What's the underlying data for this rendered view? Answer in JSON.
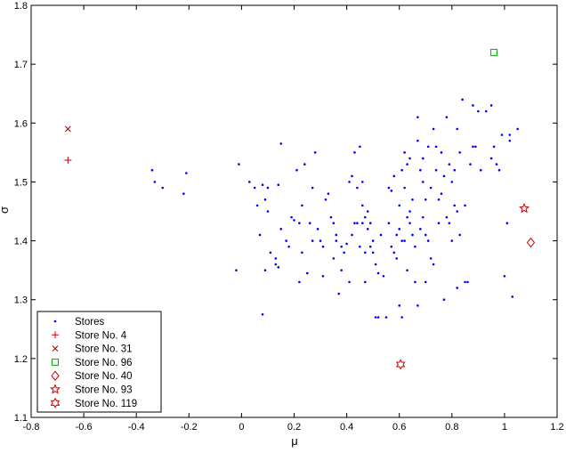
{
  "chart_data": {
    "type": "scatter",
    "xlabel": "μ",
    "ylabel": "σ",
    "xlim": [
      -0.8,
      1.2
    ],
    "ylim": [
      1.1,
      1.8
    ],
    "xticks": [
      "-0.8",
      "-0.6",
      "-0.4",
      "-0.2",
      "0",
      "0.2",
      "0.4",
      "0.6",
      "0.8",
      "1",
      "1.2"
    ],
    "yticks": [
      "1.1",
      "1.2",
      "1.3",
      "1.4",
      "1.5",
      "1.6",
      "1.7",
      "1.8"
    ],
    "grid": false,
    "legend_position": "bottom-left",
    "series": [
      {
        "name": "Stores",
        "marker": "dot",
        "color": "#0000ff",
        "points": [
          [
            -0.34,
            1.52
          ],
          [
            -0.33,
            1.5
          ],
          [
            -0.3,
            1.49
          ],
          [
            -0.22,
            1.48
          ],
          [
            -0.21,
            1.515
          ],
          [
            -0.02,
            1.35
          ],
          [
            -0.01,
            1.53
          ],
          [
            0.03,
            1.5
          ],
          [
            0.05,
            1.49
          ],
          [
            0.06,
            1.46
          ],
          [
            0.07,
            1.41
          ],
          [
            0.08,
            1.495
          ],
          [
            0.08,
            1.275
          ],
          [
            0.09,
            1.47
          ],
          [
            0.1,
            1.49
          ],
          [
            0.1,
            1.45
          ],
          [
            0.09,
            1.35
          ],
          [
            0.11,
            1.38
          ],
          [
            0.13,
            1.36
          ],
          [
            0.13,
            1.37
          ],
          [
            0.14,
            1.355
          ],
          [
            0.14,
            1.495
          ],
          [
            0.15,
            1.565
          ],
          [
            0.15,
            1.42
          ],
          [
            0.17,
            1.4
          ],
          [
            0.18,
            1.39
          ],
          [
            0.19,
            1.44
          ],
          [
            0.2,
            1.435
          ],
          [
            0.21,
            1.52
          ],
          [
            0.22,
            1.33
          ],
          [
            0.22,
            1.43
          ],
          [
            0.23,
            1.46
          ],
          [
            0.23,
            1.38
          ],
          [
            0.24,
            1.53
          ],
          [
            0.25,
            1.345
          ],
          [
            0.26,
            1.43
          ],
          [
            0.27,
            1.4
          ],
          [
            0.27,
            1.49
          ],
          [
            0.28,
            1.55
          ],
          [
            0.29,
            1.42
          ],
          [
            0.3,
            1.4
          ],
          [
            0.31,
            1.39
          ],
          [
            0.31,
            1.34
          ],
          [
            0.32,
            1.47
          ],
          [
            0.33,
            1.48
          ],
          [
            0.34,
            1.44
          ],
          [
            0.35,
            1.43
          ],
          [
            0.35,
            1.37
          ],
          [
            0.36,
            1.4
          ],
          [
            0.36,
            1.41
          ],
          [
            0.37,
            1.31
          ],
          [
            0.38,
            1.39
          ],
          [
            0.38,
            1.35
          ],
          [
            0.39,
            1.38
          ],
          [
            0.4,
            1.395
          ],
          [
            0.41,
            1.5
          ],
          [
            0.41,
            1.33
          ],
          [
            0.42,
            1.41
          ],
          [
            0.42,
            1.51
          ],
          [
            0.43,
            1.43
          ],
          [
            0.43,
            1.55
          ],
          [
            0.44,
            1.43
          ],
          [
            0.44,
            1.49
          ],
          [
            0.45,
            1.39
          ],
          [
            0.45,
            1.56
          ],
          [
            0.46,
            1.46
          ],
          [
            0.46,
            1.5
          ],
          [
            0.46,
            1.43
          ],
          [
            0.47,
            1.44
          ],
          [
            0.47,
            1.38
          ],
          [
            0.47,
            1.33
          ],
          [
            0.48,
            1.45
          ],
          [
            0.48,
            1.42
          ],
          [
            0.49,
            1.39
          ],
          [
            0.49,
            1.43
          ],
          [
            0.5,
            1.4
          ],
          [
            0.5,
            1.38
          ],
          [
            0.51,
            1.36
          ],
          [
            0.51,
            1.27
          ],
          [
            0.52,
            1.27
          ],
          [
            0.52,
            1.345
          ],
          [
            0.53,
            1.41
          ],
          [
            0.54,
            1.34
          ],
          [
            0.55,
            1.27
          ],
          [
            0.56,
            1.49
          ],
          [
            0.56,
            1.43
          ],
          [
            0.57,
            1.39
          ],
          [
            0.57,
            1.485
          ],
          [
            0.58,
            1.51
          ],
          [
            0.58,
            1.38
          ],
          [
            0.59,
            1.41
          ],
          [
            0.59,
            1.37
          ],
          [
            0.6,
            1.46
          ],
          [
            0.6,
            1.42
          ],
          [
            0.6,
            1.29
          ],
          [
            0.61,
            1.52
          ],
          [
            0.61,
            1.4
          ],
          [
            0.61,
            1.27
          ],
          [
            0.62,
            1.55
          ],
          [
            0.62,
            1.49
          ],
          [
            0.62,
            1.4
          ],
          [
            0.63,
            1.53
          ],
          [
            0.63,
            1.44
          ],
          [
            0.63,
            1.35
          ],
          [
            0.64,
            1.45
          ],
          [
            0.64,
            1.43
          ],
          [
            0.64,
            1.54
          ],
          [
            0.65,
            1.47
          ],
          [
            0.65,
            1.41
          ],
          [
            0.66,
            1.33
          ],
          [
            0.66,
            1.39
          ],
          [
            0.67,
            1.57
          ],
          [
            0.67,
            1.61
          ],
          [
            0.67,
            1.29
          ],
          [
            0.68,
            1.52
          ],
          [
            0.68,
            1.42
          ],
          [
            0.69,
            1.54
          ],
          [
            0.69,
            1.5
          ],
          [
            0.69,
            1.44
          ],
          [
            0.7,
            1.47
          ],
          [
            0.7,
            1.41
          ],
          [
            0.7,
            1.33
          ],
          [
            0.71,
            1.56
          ],
          [
            0.71,
            1.4
          ],
          [
            0.72,
            1.49
          ],
          [
            0.72,
            1.37
          ],
          [
            0.73,
            1.59
          ],
          [
            0.73,
            1.36
          ],
          [
            0.74,
            1.56
          ],
          [
            0.74,
            1.52
          ],
          [
            0.75,
            1.47
          ],
          [
            0.75,
            1.43
          ],
          [
            0.76,
            1.55
          ],
          [
            0.76,
            1.48
          ],
          [
            0.77,
            1.51
          ],
          [
            0.77,
            1.3
          ],
          [
            0.78,
            1.61
          ],
          [
            0.78,
            1.44
          ],
          [
            0.79,
            1.53
          ],
          [
            0.79,
            1.43
          ],
          [
            0.8,
            1.5
          ],
          [
            0.8,
            1.4
          ],
          [
            0.81,
            1.52
          ],
          [
            0.81,
            1.46
          ],
          [
            0.82,
            1.59
          ],
          [
            0.82,
            1.45
          ],
          [
            0.82,
            1.32
          ],
          [
            0.83,
            1.55
          ],
          [
            0.83,
            1.41
          ],
          [
            0.84,
            1.64
          ],
          [
            0.85,
            1.33
          ],
          [
            0.85,
            1.46
          ],
          [
            0.86,
            1.33
          ],
          [
            0.87,
            1.53
          ],
          [
            0.88,
            1.56
          ],
          [
            0.88,
            1.63
          ],
          [
            0.89,
            1.56
          ],
          [
            0.9,
            1.62
          ],
          [
            0.91,
            1.52
          ],
          [
            0.93,
            1.62
          ],
          [
            0.95,
            1.54
          ],
          [
            0.95,
            1.63
          ],
          [
            0.96,
            1.56
          ],
          [
            0.97,
            1.53
          ],
          [
            0.98,
            1.52
          ],
          [
            0.99,
            1.58
          ],
          [
            1.0,
            1.34
          ],
          [
            1.01,
            1.43
          ],
          [
            1.02,
            1.57
          ],
          [
            1.02,
            1.58
          ],
          [
            1.03,
            1.305
          ],
          [
            1.05,
            1.59
          ]
        ]
      },
      {
        "name": "Store No. 4",
        "marker": "plus",
        "color": "#cc0000",
        "points": [
          [
            -0.66,
            1.537
          ]
        ]
      },
      {
        "name": "Store No. 31",
        "marker": "x",
        "color": "#990000",
        "points": [
          [
            -0.66,
            1.59
          ]
        ]
      },
      {
        "name": "Store No. 96",
        "marker": "square",
        "color": "#00aa00",
        "points": [
          [
            0.96,
            1.72
          ]
        ]
      },
      {
        "name": "Store No. 40",
        "marker": "diamond",
        "color": "#cc0000",
        "points": [
          [
            1.1,
            1.397
          ]
        ]
      },
      {
        "name": "Store No. 93",
        "marker": "star5",
        "color": "#cc0000",
        "points": [
          [
            1.075,
            1.455
          ]
        ]
      },
      {
        "name": "Store No. 119",
        "marker": "star6",
        "color": "#cc0000",
        "points": [
          [
            0.605,
            1.19
          ]
        ]
      }
    ]
  }
}
